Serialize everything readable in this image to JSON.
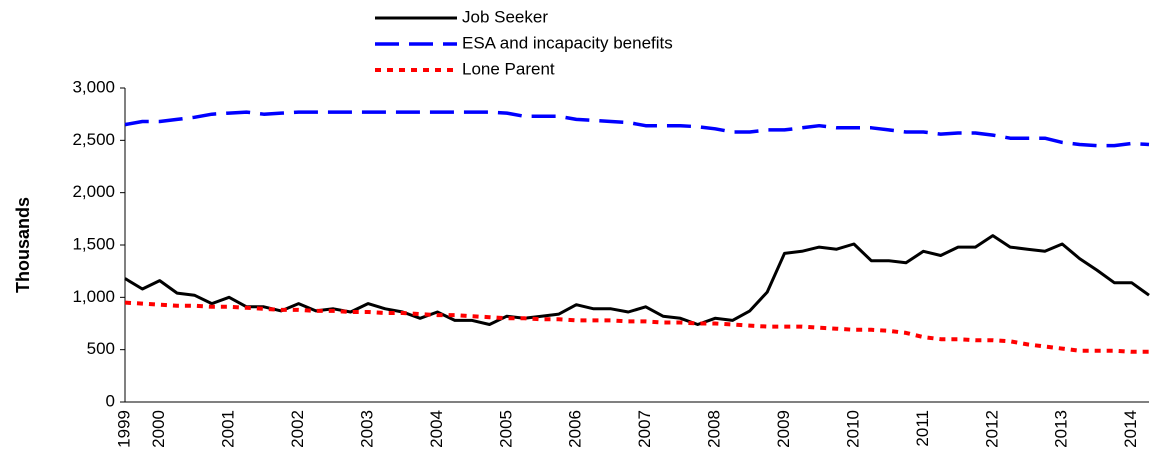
{
  "chart_data": {
    "type": "line",
    "y_label": "Thousands",
    "categories": [
      "1999",
      null,
      "2000",
      null,
      null,
      null,
      "2001",
      null,
      null,
      null,
      "2002",
      null,
      null,
      null,
      "2003",
      null,
      null,
      null,
      "2004",
      null,
      null,
      null,
      "2005",
      null,
      null,
      null,
      "2006",
      null,
      null,
      null,
      "2007",
      null,
      null,
      null,
      "2008",
      null,
      null,
      null,
      "2009",
      null,
      null,
      null,
      "2010",
      null,
      null,
      null,
      "2011",
      null,
      null,
      null,
      "2012",
      null,
      null,
      null,
      "2013",
      null,
      null,
      null,
      "2014",
      null
    ],
    "series": [
      {
        "name": "Job Seeker",
        "color": "#000000",
        "dash": "solid",
        "values": [
          1180,
          1080,
          1160,
          1040,
          1020,
          940,
          1000,
          910,
          910,
          870,
          940,
          870,
          890,
          860,
          940,
          890,
          860,
          800,
          860,
          780,
          780,
          740,
          820,
          800,
          820,
          840,
          930,
          890,
          890,
          860,
          910,
          820,
          800,
          740,
          800,
          780,
          870,
          1050,
          1420,
          1440,
          1480,
          1460,
          1510,
          1350,
          1350,
          1330,
          1440,
          1400,
          1480,
          1480,
          1590,
          1480,
          1460,
          1440,
          1510,
          1370,
          1260,
          1140,
          1140,
          1020
        ]
      },
      {
        "name": "ESA and incapacity benefits",
        "color": "#0000ff",
        "dash": "dashed",
        "values": [
          2650,
          2680,
          2680,
          2700,
          2720,
          2750,
          2760,
          2770,
          2750,
          2760,
          2770,
          2770,
          2770,
          2770,
          2770,
          2770,
          2770,
          2770,
          2770,
          2770,
          2770,
          2770,
          2760,
          2730,
          2730,
          2730,
          2700,
          2690,
          2680,
          2670,
          2640,
          2640,
          2640,
          2630,
          2610,
          2580,
          2580,
          2600,
          2600,
          2620,
          2640,
          2620,
          2620,
          2620,
          2600,
          2580,
          2580,
          2560,
          2570,
          2570,
          2550,
          2520,
          2520,
          2520,
          2480,
          2460,
          2450,
          2450,
          2470,
          2460
        ]
      },
      {
        "name": "Lone Parent",
        "color": "#ff0000",
        "dash": "dotted",
        "values": [
          950,
          940,
          930,
          920,
          920,
          910,
          910,
          900,
          890,
          880,
          880,
          870,
          870,
          860,
          860,
          850,
          850,
          840,
          830,
          830,
          820,
          810,
          800,
          800,
          790,
          790,
          780,
          780,
          780,
          770,
          770,
          760,
          760,
          750,
          750,
          740,
          730,
          720,
          720,
          720,
          710,
          700,
          690,
          690,
          680,
          660,
          620,
          600,
          600,
          590,
          590,
          580,
          550,
          530,
          510,
          490,
          490,
          490,
          480,
          480
        ]
      }
    ],
    "ylim": [
      0,
      3000
    ],
    "yticks": [
      0,
      500,
      {
        "value": 1000,
        "label": "1,000"
      },
      {
        "value": 1500,
        "label": "1,500"
      },
      {
        "value": 2000,
        "label": "2,000"
      },
      {
        "value": 2500,
        "label": "2,500"
      },
      {
        "value": 3000,
        "label": "3,000"
      }
    ],
    "grid": false
  }
}
